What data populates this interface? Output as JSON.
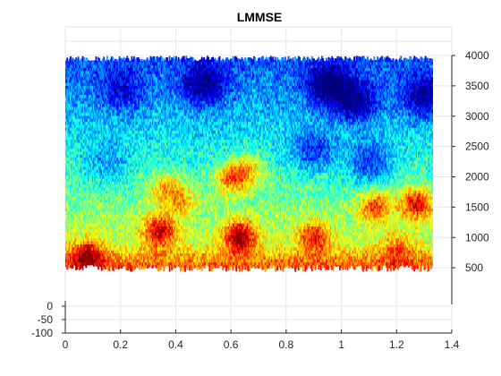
{
  "chart_data": {
    "type": "heatmap",
    "title": "LMMSE",
    "xlabel": "",
    "ylabel": "",
    "xlim": [
      0,
      1.4
    ],
    "x_ticks": [
      "0",
      "0.2",
      "0.4",
      "0.6",
      "0.8",
      "1",
      "1.2",
      "1.4"
    ],
    "y_right_lim": [
      0,
      4000
    ],
    "y_right_ticks": [
      "500",
      "1000",
      "1500",
      "2000",
      "2500",
      "3000",
      "3500",
      "4000"
    ],
    "z_lim": [
      -100,
      0
    ],
    "z_ticks": [
      "0",
      "-50",
      "-100"
    ],
    "grid": true,
    "colormap": "jet",
    "data_extent": {
      "x": [
        0,
        1.33
      ],
      "y": [
        500,
        3950
      ]
    },
    "high_energy_regions": [
      {
        "x": 0.08,
        "y": 700,
        "level": 0.85
      },
      {
        "x": 0.34,
        "y": 1100,
        "level": 0.95
      },
      {
        "x": 0.36,
        "y": 1800,
        "level": 0.75
      },
      {
        "x": 0.42,
        "y": 1600,
        "level": 0.7
      },
      {
        "x": 0.63,
        "y": 1000,
        "level": 1.0
      },
      {
        "x": 0.6,
        "y": 1950,
        "level": 0.85
      },
      {
        "x": 0.66,
        "y": 2100,
        "level": 0.75
      },
      {
        "x": 0.9,
        "y": 1000,
        "level": 0.85
      },
      {
        "x": 1.12,
        "y": 1500,
        "level": 0.85
      },
      {
        "x": 1.27,
        "y": 1550,
        "level": 0.95
      },
      {
        "x": 1.2,
        "y": 800,
        "level": 0.7
      }
    ],
    "low_energy_regions": [
      {
        "x": 0.5,
        "y": 3500,
        "level": 0.1
      },
      {
        "x": 0.95,
        "y": 3500,
        "level": 0.05
      },
      {
        "x": 1.05,
        "y": 3200,
        "level": 0.1
      },
      {
        "x": 1.3,
        "y": 3300,
        "level": 0.1
      },
      {
        "x": 0.2,
        "y": 3400,
        "level": 0.25
      },
      {
        "x": 0.9,
        "y": 2400,
        "level": 0.2
      },
      {
        "x": 1.1,
        "y": 2200,
        "level": 0.15
      },
      {
        "x": 0.15,
        "y": 2200,
        "level": 0.3
      }
    ]
  }
}
